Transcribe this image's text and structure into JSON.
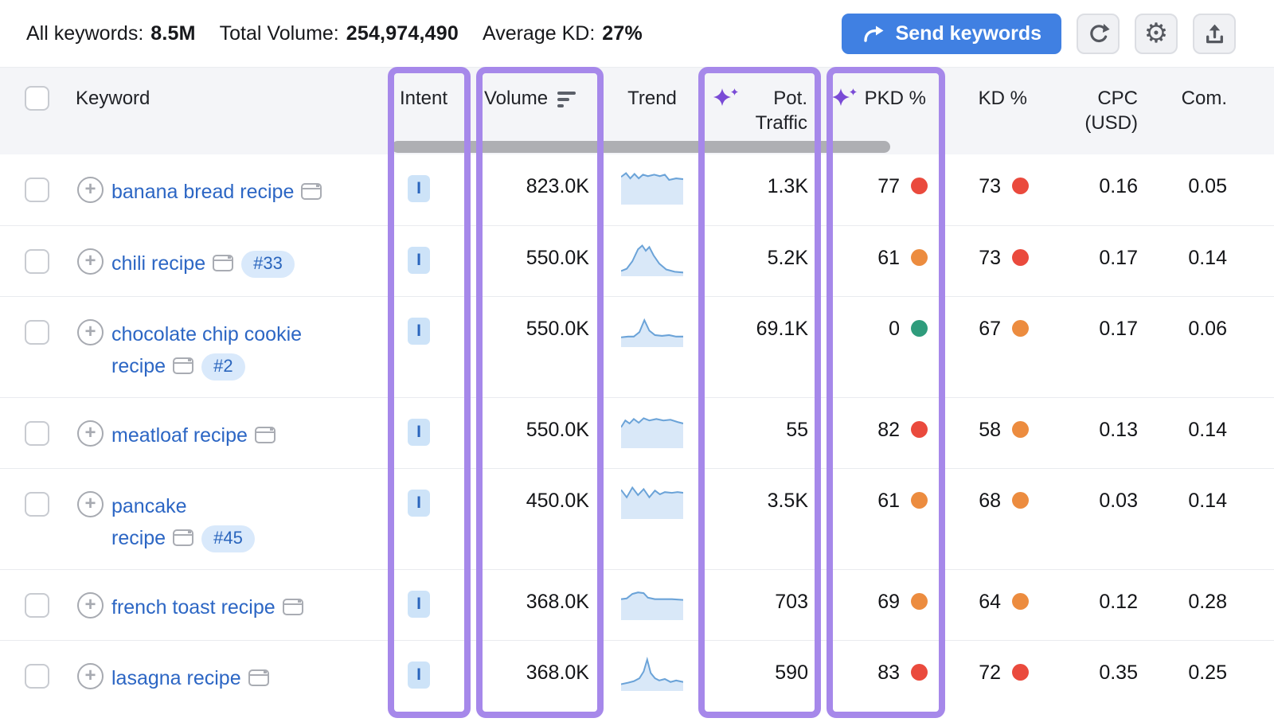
{
  "topbar": {
    "stats": [
      {
        "label": "All keywords:",
        "value": "8.5M"
      },
      {
        "label": "Total Volume:",
        "value": "254,974,490"
      },
      {
        "label": "Average KD:",
        "value": "27%"
      }
    ],
    "send_label": "Send keywords",
    "icons": {
      "send": "share-arrow-icon",
      "refresh": "refresh-icon",
      "settings": "gear-icon",
      "export": "export-icon"
    }
  },
  "table": {
    "header": {
      "keyword": "Keyword",
      "intent": "Intent",
      "volume": "Volume",
      "volume_sort_icon": "sort-descending-icon",
      "trend": "Trend",
      "pot_traffic_line1": "Pot.",
      "pot_traffic_line2": "Traffic",
      "pot_traffic_icon": "sparkle-icon",
      "pkd": "PKD %",
      "pkd_icon": "sparkle-icon",
      "kd": "KD %",
      "cpc_line1": "CPC",
      "cpc_line2": "(USD)",
      "com": "Com."
    },
    "rows": [
      {
        "keyword_line1": "banana bread recipe",
        "keyword_line2": "",
        "two_line": false,
        "badge": "",
        "intent": "I",
        "volume": "823.0K",
        "pot_traffic": "1.3K",
        "pkd": "77",
        "pkd_level": "red",
        "kd": "73",
        "kd_level": "red",
        "cpc": "0.16",
        "com": "0.05",
        "trend": [
          [
            0,
            13
          ],
          [
            7,
            8
          ],
          [
            13,
            15
          ],
          [
            19,
            9
          ],
          [
            25,
            15
          ],
          [
            31,
            10
          ],
          [
            38,
            12
          ],
          [
            47,
            10
          ],
          [
            55,
            12
          ],
          [
            62,
            10
          ],
          [
            68,
            17
          ],
          [
            78,
            15
          ],
          [
            88,
            16
          ]
        ]
      },
      {
        "keyword_line1": "chili recipe",
        "keyword_line2": "",
        "two_line": false,
        "badge": "#33",
        "intent": "I",
        "volume": "550.0K",
        "pot_traffic": "5.2K",
        "pkd": "61",
        "pkd_level": "orange",
        "kd": "73",
        "kd_level": "red",
        "cpc": "0.17",
        "com": "0.14",
        "trend": [
          [
            0,
            43
          ],
          [
            8,
            40
          ],
          [
            16,
            30
          ],
          [
            24,
            14
          ],
          [
            30,
            9
          ],
          [
            35,
            16
          ],
          [
            40,
            11
          ],
          [
            46,
            22
          ],
          [
            54,
            33
          ],
          [
            64,
            41
          ],
          [
            76,
            44
          ],
          [
            88,
            45
          ]
        ]
      },
      {
        "keyword_line1": "chocolate chip cookie",
        "keyword_line2": "recipe",
        "two_line": true,
        "badge": "#2",
        "intent": "I",
        "volume": "550.0K",
        "pot_traffic": "69.1K",
        "pkd": "0",
        "pkd_level": "green",
        "kd": "67",
        "kd_level": "orange",
        "cpc": "0.17",
        "com": "0.06",
        "trend": [
          [
            0,
            37
          ],
          [
            10,
            36
          ],
          [
            18,
            36
          ],
          [
            26,
            30
          ],
          [
            33,
            14
          ],
          [
            40,
            28
          ],
          [
            48,
            34
          ],
          [
            58,
            35
          ],
          [
            68,
            34
          ],
          [
            78,
            36
          ],
          [
            88,
            36
          ]
        ]
      },
      {
        "keyword_line1": "meatloaf recipe",
        "keyword_line2": "",
        "two_line": false,
        "badge": "",
        "intent": "I",
        "volume": "550.0K",
        "pot_traffic": "55",
        "pkd": "82",
        "pkd_level": "red",
        "kd": "58",
        "kd_level": "orange",
        "cpc": "0.13",
        "com": "0.14",
        "trend": [
          [
            0,
            22
          ],
          [
            6,
            13
          ],
          [
            12,
            17
          ],
          [
            18,
            11
          ],
          [
            25,
            16
          ],
          [
            32,
            10
          ],
          [
            40,
            13
          ],
          [
            50,
            11
          ],
          [
            60,
            13
          ],
          [
            70,
            12
          ],
          [
            80,
            15
          ],
          [
            88,
            17
          ]
        ]
      },
      {
        "keyword_line1": "pancake",
        "keyword_line2": "recipe",
        "two_line": true,
        "badge": "#45",
        "intent": "I",
        "volume": "450.0K",
        "pot_traffic": "3.5K",
        "pkd": "61",
        "pkd_level": "orange",
        "kd": "68",
        "kd_level": "orange",
        "cpc": "0.03",
        "com": "0.14",
        "trend": [
          [
            0,
            11
          ],
          [
            8,
            21
          ],
          [
            16,
            8
          ],
          [
            24,
            18
          ],
          [
            32,
            10
          ],
          [
            40,
            21
          ],
          [
            48,
            12
          ],
          [
            55,
            17
          ],
          [
            62,
            14
          ],
          [
            72,
            15
          ],
          [
            80,
            14
          ],
          [
            88,
            15
          ]
        ]
      },
      {
        "keyword_line1": "french toast recipe",
        "keyword_line2": "",
        "two_line": false,
        "badge": "",
        "intent": "I",
        "volume": "368.0K",
        "pot_traffic": "703",
        "pkd": "69",
        "pkd_level": "orange",
        "kd": "64",
        "kd_level": "orange",
        "cpc": "0.12",
        "com": "0.28",
        "trend": [
          [
            0,
            22
          ],
          [
            8,
            21
          ],
          [
            16,
            15
          ],
          [
            24,
            13
          ],
          [
            32,
            14
          ],
          [
            38,
            20
          ],
          [
            48,
            22
          ],
          [
            60,
            22
          ],
          [
            72,
            22
          ],
          [
            88,
            23
          ]
        ]
      },
      {
        "keyword_line1": "lasagna recipe",
        "keyword_line2": "",
        "two_line": false,
        "badge": "",
        "intent": "I",
        "volume": "368.0K",
        "pot_traffic": "590",
        "pkd": "83",
        "pkd_level": "red",
        "kd": "72",
        "kd_level": "red",
        "cpc": "0.35",
        "com": "0.25",
        "trend": [
          [
            0,
            41
          ],
          [
            10,
            39
          ],
          [
            18,
            37
          ],
          [
            26,
            33
          ],
          [
            32,
            24
          ],
          [
            37,
            8
          ],
          [
            42,
            26
          ],
          [
            48,
            33
          ],
          [
            54,
            36
          ],
          [
            62,
            34
          ],
          [
            70,
            38
          ],
          [
            78,
            36
          ],
          [
            88,
            38
          ]
        ]
      }
    ]
  },
  "colors": {
    "highlight_purple": "#a688ea",
    "button_blue": "#4080e2",
    "link_blue": "#2c66c4",
    "intent_badge_bg": "#cde3f8",
    "sparkle_purple": "#7a4bd6",
    "dot_red": "#ea4a3d",
    "dot_orange": "#ec8c3f",
    "dot_green": "#2f9c7c",
    "spark_line": "#6ba3d8",
    "spark_fill": "#d9e8f8"
  }
}
